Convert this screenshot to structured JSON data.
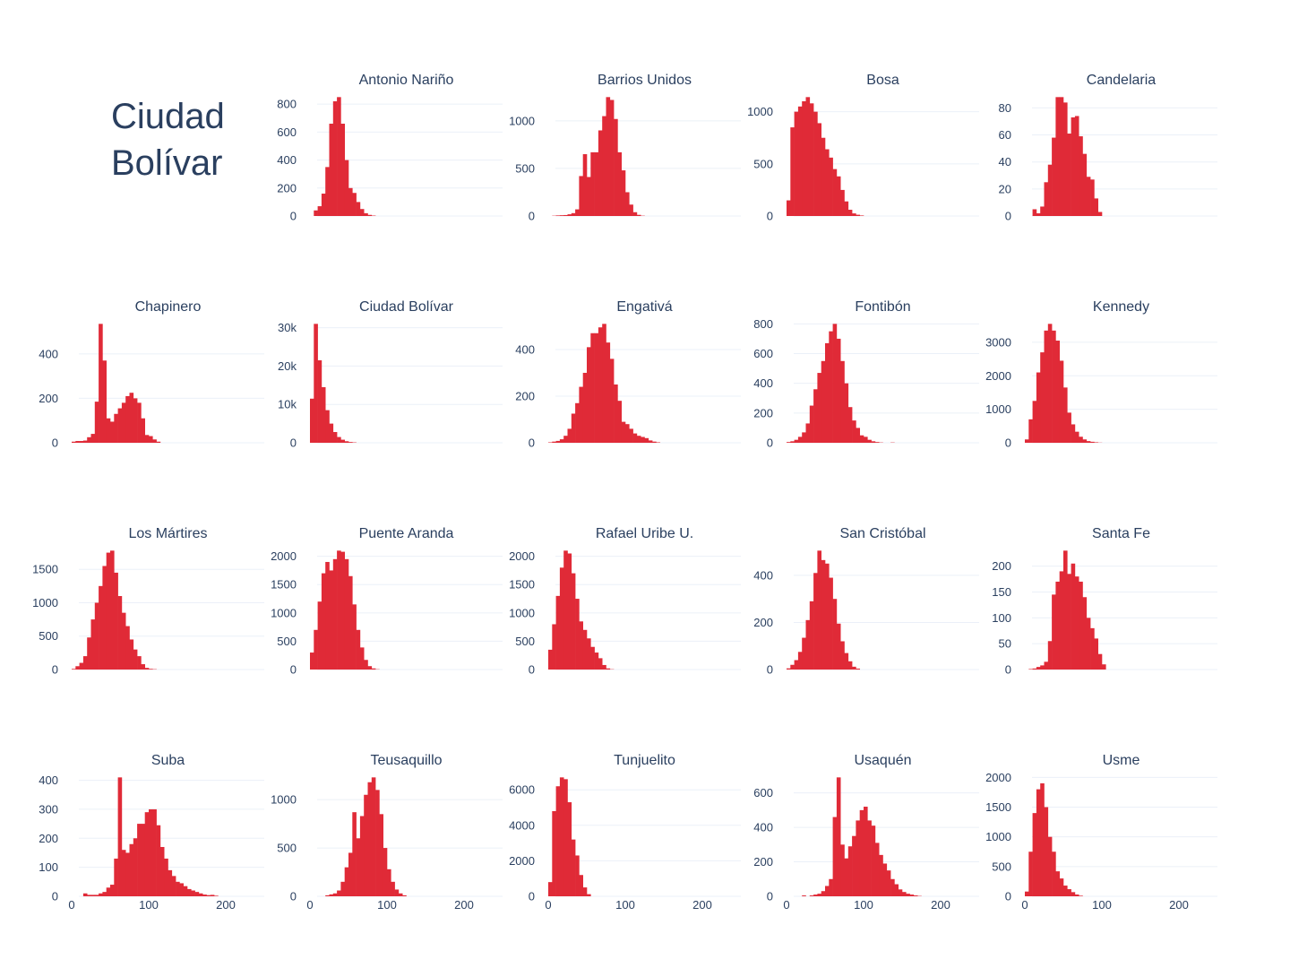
{
  "figure": {
    "title_lines": [
      "Ciudad",
      "Bolívar"
    ],
    "colors": {
      "bar": "#e02a37",
      "text": "#2a3f5f",
      "grid": "#ebf0f8"
    }
  },
  "chart_data": [
    {
      "type": "bar",
      "title": "Antonio Nariño",
      "x_start": 0,
      "bin_width": 5,
      "xlim": [
        0,
        250
      ],
      "yticks": [
        0,
        200,
        400,
        600,
        800
      ],
      "ytick_labels": [
        "0",
        "200",
        "400",
        "600",
        "800"
      ],
      "xticks": [],
      "xtick_labels": [],
      "values": [
        0,
        40,
        70,
        160,
        350,
        660,
        820,
        850,
        660,
        400,
        200,
        165,
        100,
        50,
        20,
        8,
        3,
        0,
        0,
        0,
        0,
        0,
        0,
        0,
        0,
        0,
        0,
        0,
        0,
        0,
        0,
        0,
        0,
        0,
        0,
        0,
        0,
        0,
        0,
        0,
        0,
        0,
        0,
        0,
        0,
        0,
        0,
        0,
        0,
        0
      ]
    },
    {
      "type": "bar",
      "title": "Barrios Unidos",
      "x_start": 0,
      "bin_width": 5,
      "xlim": [
        0,
        250
      ],
      "yticks": [
        0,
        500,
        1000
      ],
      "ytick_labels": [
        "0",
        "500",
        "1000"
      ],
      "xticks": [],
      "xtick_labels": [],
      "values": [
        0,
        3,
        6,
        8,
        10,
        18,
        30,
        70,
        420,
        650,
        410,
        670,
        670,
        900,
        1050,
        1250,
        1220,
        1020,
        670,
        480,
        250,
        120,
        40,
        12,
        3,
        0,
        0,
        0,
        0,
        0,
        0,
        0,
        0,
        0,
        0,
        0,
        0,
        0,
        0,
        0,
        0,
        0,
        0,
        0,
        0,
        0,
        0,
        0,
        0,
        0
      ]
    },
    {
      "type": "bar",
      "title": "Bosa",
      "x_start": 0,
      "bin_width": 5,
      "xlim": [
        0,
        250
      ],
      "yticks": [
        0,
        500,
        1000
      ],
      "ytick_labels": [
        "0",
        "500",
        "1000"
      ],
      "xticks": [],
      "xtick_labels": [],
      "values": [
        150,
        850,
        1000,
        1050,
        1100,
        1140,
        1080,
        1000,
        890,
        750,
        640,
        560,
        450,
        380,
        250,
        140,
        60,
        25,
        12,
        5,
        0,
        0,
        0,
        0,
        0,
        0,
        0,
        0,
        0,
        0,
        0,
        0,
        0,
        0,
        0,
        0,
        0,
        0,
        0,
        0,
        0,
        0,
        0,
        0,
        0,
        0,
        0,
        0,
        0,
        0
      ]
    },
    {
      "type": "bar",
      "title": "Candelaria",
      "x_start": 0,
      "bin_width": 5,
      "xlim": [
        0,
        250
      ],
      "yticks": [
        0,
        20,
        40,
        60,
        80
      ],
      "ytick_labels": [
        "0",
        "20",
        "40",
        "60",
        "80"
      ],
      "xticks": [],
      "xtick_labels": [],
      "values": [
        0,
        0,
        5,
        2,
        7,
        25,
        38,
        58,
        88,
        88,
        84,
        61,
        73,
        74,
        59,
        46,
        29,
        27,
        13,
        3,
        0,
        0,
        0,
        0,
        0,
        0,
        0,
        0,
        0,
        0,
        0,
        0,
        0,
        0,
        0,
        0,
        0,
        0,
        0,
        0,
        0,
        0,
        0,
        0,
        0,
        0,
        0,
        0,
        0,
        0
      ]
    },
    {
      "type": "bar",
      "title": "Chapinero",
      "x_start": 0,
      "bin_width": 5,
      "xlim": [
        0,
        250
      ],
      "yticks": [
        0,
        200,
        400
      ],
      "ytick_labels": [
        "0",
        "200",
        "400"
      ],
      "xticks": [],
      "xtick_labels": [],
      "values": [
        5,
        8,
        8,
        10,
        25,
        40,
        185,
        535,
        370,
        110,
        95,
        130,
        155,
        180,
        210,
        225,
        200,
        180,
        110,
        35,
        30,
        15,
        5,
        0,
        0,
        0,
        0,
        0,
        0,
        0,
        0,
        0,
        0,
        0,
        0,
        0,
        0,
        0,
        0,
        0,
        0,
        0,
        0,
        0,
        0,
        0,
        0,
        0,
        0,
        0
      ]
    },
    {
      "type": "bar",
      "title": "Ciudad Bolívar",
      "x_start": 0,
      "bin_width": 5,
      "xlim": [
        0,
        250
      ],
      "yticks": [
        0,
        10000,
        20000,
        30000
      ],
      "ytick_labels": [
        "0",
        "10k",
        "20k",
        "30k"
      ],
      "xticks": [],
      "xtick_labels": [],
      "values": [
        11500,
        31000,
        21500,
        14500,
        8500,
        5000,
        2800,
        1500,
        800,
        400,
        200,
        100,
        0,
        0,
        0,
        0,
        0,
        0,
        0,
        0,
        0,
        0,
        0,
        0,
        0,
        0,
        0,
        0,
        0,
        0,
        0,
        0,
        0,
        0,
        0,
        0,
        0,
        0,
        0,
        0,
        0,
        0,
        0,
        0,
        0,
        0,
        0,
        0,
        0,
        0
      ]
    },
    {
      "type": "bar",
      "title": "Engativá",
      "x_start": 0,
      "bin_width": 5,
      "xlim": [
        0,
        250
      ],
      "yticks": [
        0,
        200,
        400
      ],
      "ytick_labels": [
        "0",
        "200",
        "400"
      ],
      "xticks": [],
      "xtick_labels": [],
      "values": [
        2,
        5,
        8,
        15,
        30,
        60,
        125,
        170,
        240,
        300,
        410,
        470,
        470,
        495,
        510,
        430,
        360,
        250,
        180,
        90,
        80,
        60,
        40,
        30,
        25,
        20,
        10,
        5,
        2,
        0,
        0,
        0,
        0,
        0,
        0,
        0,
        0,
        0,
        0,
        0,
        0,
        0,
        0,
        0,
        0,
        0,
        0,
        0,
        0,
        0
      ]
    },
    {
      "type": "bar",
      "title": "Fontibón",
      "x_start": 0,
      "bin_width": 5,
      "xlim": [
        0,
        250
      ],
      "yticks": [
        0,
        200,
        400,
        600,
        800
      ],
      "ytick_labels": [
        "0",
        "200",
        "400",
        "600",
        "800"
      ],
      "xticks": [],
      "xtick_labels": [],
      "values": [
        5,
        10,
        20,
        40,
        70,
        130,
        250,
        360,
        470,
        550,
        670,
        750,
        800,
        700,
        550,
        400,
        240,
        150,
        100,
        50,
        40,
        20,
        10,
        5,
        2,
        0,
        0,
        2,
        0,
        0,
        0,
        0,
        0,
        0,
        0,
        0,
        0,
        0,
        0,
        0,
        0,
        0,
        0,
        0,
        0,
        0,
        0,
        0,
        0,
        0
      ]
    },
    {
      "type": "bar",
      "title": "Kennedy",
      "x_start": 0,
      "bin_width": 5,
      "xlim": [
        0,
        250
      ],
      "yticks": [
        0,
        1000,
        2000,
        3000
      ],
      "ytick_labels": [
        "0",
        "1000",
        "2000",
        "3000"
      ],
      "xticks": [],
      "xtick_labels": [],
      "values": [
        100,
        700,
        1250,
        2100,
        2700,
        3350,
        3550,
        3350,
        3050,
        2450,
        1650,
        900,
        550,
        330,
        180,
        100,
        50,
        30,
        15,
        5,
        0,
        0,
        0,
        0,
        0,
        0,
        0,
        0,
        0,
        0,
        0,
        0,
        0,
        0,
        0,
        0,
        0,
        0,
        0,
        0,
        0,
        0,
        0,
        0,
        0,
        0,
        0,
        0,
        0,
        0
      ]
    },
    {
      "type": "bar",
      "title": "Los Mártires",
      "x_start": 0,
      "bin_width": 5,
      "xlim": [
        0,
        250
      ],
      "yticks": [
        0,
        500,
        1000,
        1500
      ],
      "ytick_labels": [
        "0",
        "500",
        "1000",
        "1500"
      ],
      "xticks": [],
      "xtick_labels": [],
      "values": [
        10,
        50,
        100,
        200,
        480,
        750,
        1000,
        1250,
        1550,
        1750,
        1780,
        1450,
        1100,
        850,
        650,
        450,
        300,
        200,
        80,
        25,
        10,
        5,
        0,
        0,
        0,
        0,
        0,
        0,
        0,
        0,
        0,
        0,
        0,
        0,
        0,
        0,
        0,
        0,
        0,
        0,
        0,
        0,
        0,
        0,
        0,
        0,
        0,
        0,
        0,
        0
      ]
    },
    {
      "type": "bar",
      "title": "Puente Aranda",
      "x_start": 0,
      "bin_width": 5,
      "xlim": [
        0,
        250
      ],
      "yticks": [
        0,
        500,
        1000,
        1500,
        2000
      ],
      "ytick_labels": [
        "0",
        "500",
        "1000",
        "1500",
        "2000"
      ],
      "xticks": [],
      "xtick_labels": [],
      "values": [
        300,
        700,
        1200,
        1700,
        1900,
        1750,
        1950,
        2100,
        2080,
        1950,
        1650,
        1150,
        700,
        390,
        170,
        60,
        20,
        5,
        0,
        0,
        0,
        0,
        0,
        0,
        0,
        0,
        0,
        0,
        0,
        0,
        0,
        0,
        0,
        0,
        0,
        0,
        0,
        0,
        0,
        0,
        0,
        0,
        0,
        0,
        0,
        0,
        0,
        0,
        0,
        0
      ]
    },
    {
      "type": "bar",
      "title": "Rafael Uribe U.",
      "x_start": 0,
      "bin_width": 5,
      "xlim": [
        0,
        250
      ],
      "yticks": [
        0,
        500,
        1000,
        1500,
        2000
      ],
      "ytick_labels": [
        "0",
        "500",
        "1000",
        "1500",
        "2000"
      ],
      "xticks": [],
      "xtick_labels": [],
      "values": [
        350,
        800,
        1300,
        1800,
        2100,
        2050,
        1700,
        1250,
        850,
        700,
        550,
        400,
        300,
        200,
        80,
        20,
        5,
        0,
        0,
        0,
        0,
        0,
        0,
        0,
        0,
        0,
        0,
        0,
        0,
        0,
        0,
        0,
        0,
        0,
        0,
        0,
        0,
        0,
        0,
        0,
        0,
        0,
        0,
        0,
        0,
        0,
        0,
        0,
        0,
        0
      ]
    },
    {
      "type": "bar",
      "title": "San Cristóbal",
      "x_start": 0,
      "bin_width": 5,
      "xlim": [
        0,
        250
      ],
      "yticks": [
        0,
        200,
        400
      ],
      "ytick_labels": [
        "0",
        "200",
        "400"
      ],
      "xticks": [],
      "xtick_labels": [],
      "values": [
        5,
        20,
        40,
        75,
        135,
        210,
        290,
        410,
        505,
        465,
        450,
        390,
        300,
        195,
        120,
        70,
        35,
        12,
        4,
        0,
        0,
        0,
        0,
        0,
        0,
        0,
        0,
        0,
        0,
        0,
        0,
        0,
        0,
        0,
        0,
        0,
        0,
        0,
        0,
        0,
        0,
        0,
        0,
        0,
        0,
        0,
        0,
        0,
        0,
        0
      ]
    },
    {
      "type": "bar",
      "title": "Santa Fe",
      "x_start": 0,
      "bin_width": 5,
      "xlim": [
        0,
        250
      ],
      "yticks": [
        0,
        50,
        100,
        150,
        200
      ],
      "ytick_labels": [
        "0",
        "50",
        "100",
        "150",
        "200"
      ],
      "xticks": [],
      "xtick_labels": [],
      "values": [
        0,
        1,
        2,
        5,
        8,
        15,
        55,
        145,
        170,
        190,
        230,
        185,
        205,
        180,
        170,
        140,
        100,
        80,
        60,
        30,
        10,
        0,
        0,
        0,
        0,
        0,
        0,
        0,
        0,
        0,
        0,
        0,
        0,
        0,
        0,
        0,
        0,
        0,
        0,
        0,
        0,
        0,
        0,
        0,
        0,
        0,
        0,
        0,
        0,
        0
      ]
    },
    {
      "type": "bar",
      "title": "Suba",
      "x_start": 0,
      "bin_width": 5,
      "xlim": [
        0,
        250
      ],
      "yticks": [
        0,
        100,
        200,
        300,
        400
      ],
      "ytick_labels": [
        "0",
        "100",
        "200",
        "300",
        "400"
      ],
      "xticks": [
        0,
        100,
        200
      ],
      "xtick_labels": [
        "0",
        "100",
        "200"
      ],
      "values": [
        0,
        0,
        0,
        10,
        5,
        5,
        5,
        10,
        15,
        30,
        40,
        130,
        410,
        160,
        150,
        180,
        200,
        250,
        250,
        290,
        300,
        300,
        245,
        170,
        130,
        90,
        70,
        50,
        45,
        35,
        25,
        20,
        15,
        10,
        6,
        4,
        5,
        2,
        0,
        0,
        0,
        0,
        0,
        0,
        0,
        0,
        0,
        0,
        0,
        0
      ]
    },
    {
      "type": "bar",
      "title": "Teusaquillo",
      "x_start": 0,
      "bin_width": 5,
      "xlim": [
        0,
        250
      ],
      "yticks": [
        0,
        500,
        1000
      ],
      "ytick_labels": [
        "0",
        "500",
        "1000"
      ],
      "xticks": [
        0,
        100,
        200
      ],
      "xtick_labels": [
        "0",
        "100",
        "200"
      ],
      "values": [
        0,
        0,
        0,
        0,
        10,
        20,
        30,
        60,
        150,
        300,
        450,
        870,
        600,
        830,
        1050,
        1180,
        1230,
        1100,
        850,
        500,
        280,
        150,
        70,
        30,
        10,
        0,
        0,
        0,
        0,
        0,
        0,
        0,
        0,
        0,
        0,
        0,
        0,
        0,
        0,
        0,
        0,
        0,
        0,
        0,
        0,
        0,
        0,
        0,
        0,
        0
      ]
    },
    {
      "type": "bar",
      "title": "Tunjuelito",
      "x_start": 0,
      "bin_width": 5,
      "xlim": [
        0,
        250
      ],
      "yticks": [
        0,
        2000,
        4000,
        6000
      ],
      "ytick_labels": [
        "0",
        "2000",
        "4000",
        "6000"
      ],
      "xticks": [
        0,
        100,
        200
      ],
      "xtick_labels": [
        "0",
        "100",
        "200"
      ],
      "values": [
        800,
        4800,
        6200,
        6700,
        6600,
        5300,
        3200,
        2300,
        1200,
        500,
        120,
        0,
        0,
        0,
        0,
        0,
        0,
        0,
        0,
        0,
        0,
        0,
        0,
        0,
        0,
        0,
        0,
        0,
        0,
        0,
        0,
        0,
        0,
        0,
        0,
        0,
        0,
        0,
        0,
        0,
        0,
        0,
        0,
        0,
        0,
        0,
        0,
        0,
        0,
        0
      ]
    },
    {
      "type": "bar",
      "title": "Usaquén",
      "x_start": 0,
      "bin_width": 5,
      "xlim": [
        0,
        250
      ],
      "yticks": [
        0,
        200,
        400,
        600
      ],
      "ytick_labels": [
        "0",
        "200",
        "400",
        "600"
      ],
      "xticks": [
        0,
        100,
        200
      ],
      "xtick_labels": [
        "0",
        "100",
        "200"
      ],
      "values": [
        0,
        0,
        0,
        0,
        5,
        0,
        5,
        10,
        15,
        30,
        60,
        100,
        460,
        690,
        300,
        220,
        290,
        350,
        440,
        500,
        520,
        440,
        410,
        310,
        240,
        190,
        150,
        100,
        70,
        40,
        25,
        15,
        10,
        5,
        2,
        0,
        0,
        0,
        0,
        0,
        0,
        0,
        0,
        0,
        0,
        0,
        0,
        0,
        0,
        0
      ]
    },
    {
      "type": "bar",
      "title": "Usme",
      "x_start": 0,
      "bin_width": 5,
      "xlim": [
        0,
        250
      ],
      "yticks": [
        0,
        500,
        1000,
        1500,
        2000
      ],
      "ytick_labels": [
        "0",
        "500",
        "1000",
        "1500",
        "2000"
      ],
      "xticks": [
        0,
        100,
        200
      ],
      "xtick_labels": [
        "0",
        "100",
        "200"
      ],
      "values": [
        80,
        750,
        1400,
        1800,
        1900,
        1500,
        1000,
        750,
        420,
        300,
        180,
        120,
        70,
        30,
        10,
        0,
        0,
        0,
        0,
        0,
        0,
        0,
        0,
        0,
        0,
        0,
        0,
        0,
        0,
        0,
        0,
        0,
        0,
        0,
        0,
        0,
        0,
        0,
        0,
        0,
        0,
        0,
        0,
        0,
        0,
        0,
        0,
        0,
        0,
        0
      ]
    }
  ]
}
